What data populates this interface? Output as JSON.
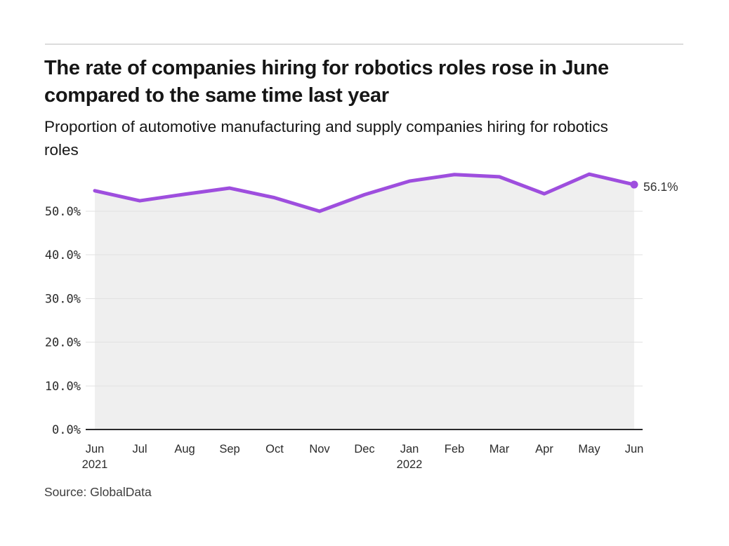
{
  "chart_data": {
    "type": "area",
    "title": "The rate of companies hiring for robotics roles rose in June compared to the same time last year",
    "subtitle": "Proportion of automotive manufacturing and supply companies hiring for robotics roles",
    "source": "Source: GlobalData",
    "categories": [
      "Jun 2021",
      "Jul 2021",
      "Aug 2021",
      "Sep 2021",
      "Oct 2021",
      "Nov 2021",
      "Dec 2021",
      "Jan 2022",
      "Feb 2022",
      "Mar 2022",
      "Apr 2022",
      "May 2022",
      "Jun 2022"
    ],
    "values": [
      54.7,
      52.4,
      53.9,
      55.3,
      53.1,
      50.0,
      53.8,
      56.9,
      58.4,
      57.9,
      54.0,
      58.5,
      56.1
    ],
    "unit": "%",
    "end_label": "56.1%",
    "xlabel": "",
    "ylabel": "",
    "ylim": [
      0,
      60
    ],
    "y_tick_values": [
      0,
      10,
      20,
      30,
      40,
      50
    ],
    "y_tick_labels": [
      "0.0%",
      "10.0%",
      "20.0%",
      "30.0%",
      "40.0%",
      "50.0%"
    ],
    "x_tick_labels": [
      {
        "month": "Jun",
        "year": "2021"
      },
      {
        "month": "Jul"
      },
      {
        "month": "Aug"
      },
      {
        "month": "Sep"
      },
      {
        "month": "Oct"
      },
      {
        "month": "Nov"
      },
      {
        "month": "Dec"
      },
      {
        "month": "Jan",
        "year": "2022"
      },
      {
        "month": "Feb"
      },
      {
        "month": "Mar"
      },
      {
        "month": "Apr"
      },
      {
        "month": "May"
      },
      {
        "month": "Jun"
      }
    ],
    "grid": "horizontal",
    "legend": "none",
    "colors": {
      "line": "#9E4EDE",
      "fill": "#EFEFEF",
      "grid": "#E2E2E2",
      "axis": "#29292B",
      "tick_text": "#2B2B2B",
      "end_label_text": "#333333"
    }
  }
}
